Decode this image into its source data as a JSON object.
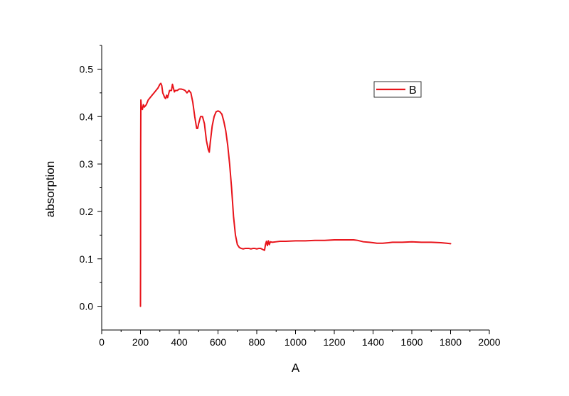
{
  "chart_data": {
    "type": "line",
    "title": "",
    "xlabel": "A",
    "ylabel": "absorption",
    "xlim": [
      0,
      2000
    ],
    "ylim": [
      -0.05,
      0.55
    ],
    "x_ticks": [
      0,
      200,
      400,
      600,
      800,
      1000,
      1200,
      1400,
      1600,
      1800,
      2000
    ],
    "y_ticks": [
      0.0,
      0.1,
      0.2,
      0.3,
      0.4,
      0.5
    ],
    "x_tick_labels": [
      "0",
      "200",
      "400",
      "600",
      "800",
      "1000",
      "1200",
      "1400",
      "1600",
      "1800",
      "2000"
    ],
    "y_tick_labels": [
      "0.0",
      "0.1",
      "0.2",
      "0.3",
      "0.4",
      "0.5"
    ],
    "grid": false,
    "legend_position": "top-right",
    "series": [
      {
        "name": "B",
        "color": "#e8141b",
        "x": [
          200,
          200.5,
          201,
          202,
          205,
          210,
          215,
          220,
          230,
          240,
          250,
          260,
          270,
          280,
          290,
          300,
          305,
          310,
          315,
          320,
          325,
          330,
          335,
          340,
          350,
          360,
          365,
          370,
          375,
          380,
          390,
          400,
          410,
          420,
          430,
          440,
          450,
          460,
          470,
          480,
          490,
          495,
          500,
          510,
          520,
          530,
          540,
          550,
          555,
          560,
          570,
          580,
          590,
          600,
          610,
          620,
          630,
          640,
          650,
          660,
          670,
          680,
          690,
          700,
          710,
          720,
          730,
          740,
          750,
          760,
          770,
          780,
          790,
          800,
          810,
          820,
          830,
          840,
          845,
          850,
          855,
          860,
          865,
          870,
          880,
          900,
          920,
          950,
          1000,
          1050,
          1100,
          1150,
          1200,
          1250,
          1300,
          1320,
          1350,
          1380,
          1400,
          1420,
          1450,
          1480,
          1500,
          1550,
          1600,
          1650,
          1700,
          1750,
          1780,
          1800
        ],
        "y": [
          0.0,
          0.1,
          0.33,
          0.435,
          0.42,
          0.415,
          0.425,
          0.42,
          0.425,
          0.435,
          0.44,
          0.445,
          0.45,
          0.455,
          0.46,
          0.468,
          0.47,
          0.465,
          0.45,
          0.445,
          0.44,
          0.438,
          0.445,
          0.44,
          0.455,
          0.455,
          0.468,
          0.46,
          0.452,
          0.455,
          0.455,
          0.458,
          0.458,
          0.457,
          0.455,
          0.45,
          0.455,
          0.45,
          0.43,
          0.4,
          0.375,
          0.375,
          0.385,
          0.4,
          0.4,
          0.385,
          0.35,
          0.33,
          0.325,
          0.345,
          0.38,
          0.4,
          0.41,
          0.412,
          0.41,
          0.405,
          0.39,
          0.37,
          0.34,
          0.3,
          0.25,
          0.19,
          0.15,
          0.13,
          0.124,
          0.122,
          0.121,
          0.122,
          0.122,
          0.122,
          0.121,
          0.122,
          0.122,
          0.121,
          0.122,
          0.122,
          0.12,
          0.118,
          0.13,
          0.137,
          0.128,
          0.138,
          0.13,
          0.136,
          0.135,
          0.136,
          0.137,
          0.137,
          0.138,
          0.138,
          0.139,
          0.139,
          0.14,
          0.14,
          0.14,
          0.139,
          0.136,
          0.135,
          0.134,
          0.133,
          0.133,
          0.134,
          0.135,
          0.135,
          0.136,
          0.135,
          0.135,
          0.134,
          0.133,
          0.132
        ]
      }
    ]
  }
}
